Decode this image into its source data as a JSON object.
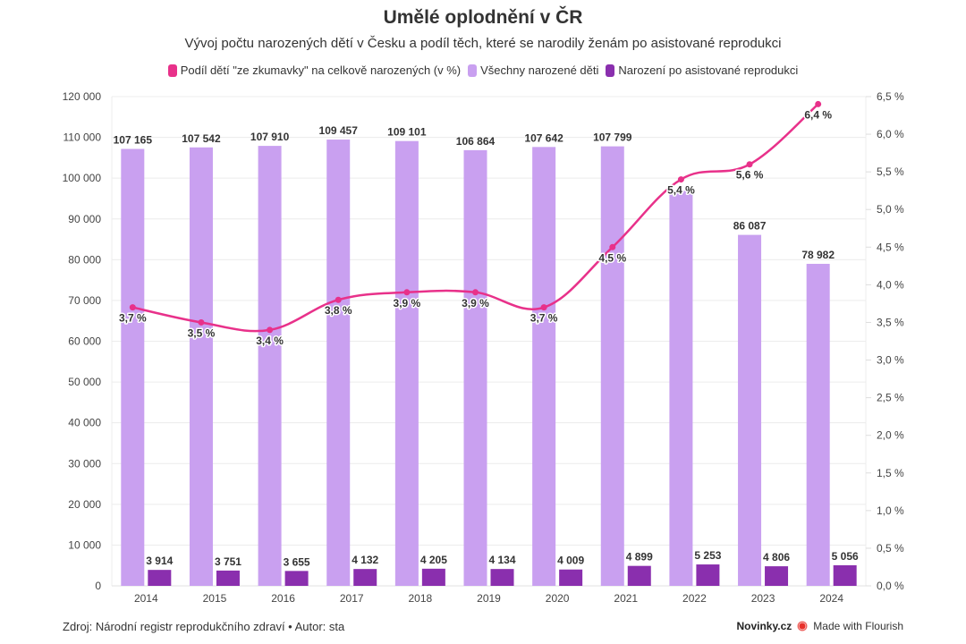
{
  "header": {
    "title": "Umělé oplodnění v ČR",
    "subtitle": "Vývoj počtu narozených dětí v Česku a podíl těch, které se narodily ženám po asistované reprodukci"
  },
  "legend": [
    {
      "label": "Podíl dětí \"ze zkumavky\" na celkově narozených (v %)",
      "color": "#e8318a"
    },
    {
      "label": "Všechny narozené děti",
      "color": "#c9a0f0"
    },
    {
      "label": "Narození po asistované reprodukci",
      "color": "#8a2fae"
    }
  ],
  "footer": {
    "source": "Zdroj: Národní registr reprodukčního zdraví • Autor: sta",
    "brand": "Novinky.cz",
    "made_with": "Made with Flourish"
  },
  "chart_data": {
    "type": "bar",
    "title": "Umělé oplodnění v ČR",
    "subtitle": "Vývoj počtu narozených dětí v Česku a podíl těch, které se narodily ženám po asistované reprodukci",
    "categories": [
      "2014",
      "2015",
      "2016",
      "2017",
      "2018",
      "2019",
      "2020",
      "2021",
      "2022",
      "2023",
      "2024"
    ],
    "series": [
      {
        "name": "Všechny narozené děti",
        "type": "bar",
        "axis": "left",
        "color": "#c9a0f0",
        "values": [
          107165,
          107542,
          107910,
          109457,
          109101,
          106864,
          107642,
          107799,
          96885,
          86087,
          78982
        ],
        "labels": [
          "107 165",
          "107 542",
          "107 910",
          "109 457",
          "109 101",
          "106 864",
          "107 642",
          "107 799",
          "",
          "86 087",
          "78 982"
        ]
      },
      {
        "name": "Narození po asistované reprodukci",
        "type": "bar",
        "axis": "left",
        "color": "#8a2fae",
        "values": [
          3914,
          3751,
          3655,
          4132,
          4205,
          4134,
          4009,
          4899,
          5253,
          4806,
          5056
        ],
        "labels": [
          "3 914",
          "3 751",
          "3 655",
          "4 132",
          "4 205",
          "4 134",
          "4 009",
          "4 899",
          "5 253",
          "4 806",
          "5 056"
        ]
      },
      {
        "name": "Podíl dětí \"ze zkumavky\" na celkově narozených (v %)",
        "type": "line",
        "axis": "right",
        "color": "#e8318a",
        "values": [
          3.7,
          3.5,
          3.4,
          3.8,
          3.9,
          3.9,
          3.7,
          4.5,
          5.4,
          5.6,
          6.4
        ],
        "labels": [
          "3,7 %",
          "3,5 %",
          "3,4 %",
          "3,8 %",
          "3,9 %",
          "3,9 %",
          "3,7 %",
          "4,5 %",
          "5,4 %",
          "5,6 %",
          "6,4 %"
        ]
      }
    ],
    "y_left": {
      "range": [
        0,
        120000
      ],
      "ticks": [
        0,
        10000,
        20000,
        30000,
        40000,
        50000,
        60000,
        70000,
        80000,
        90000,
        100000,
        110000,
        120000
      ],
      "tick_labels": [
        "0",
        "10 000",
        "20 000",
        "30 000",
        "40 000",
        "50 000",
        "60 000",
        "70 000",
        "80 000",
        "90 000",
        "100 000",
        "110 000",
        "120 000"
      ]
    },
    "y_right": {
      "range": [
        0,
        6.5
      ],
      "ticks": [
        0,
        0.5,
        1,
        1.5,
        2,
        2.5,
        3,
        3.5,
        4,
        4.5,
        5,
        5.5,
        6,
        6.5
      ],
      "tick_labels": [
        "0,0 %",
        "0,5 %",
        "1,0 %",
        "1,5 %",
        "2,0 %",
        "2,5 %",
        "3,0 %",
        "3,5 %",
        "4,0 %",
        "4,5 %",
        "5,0 %",
        "5,5 %",
        "6,0 %",
        "6,5 %"
      ]
    },
    "xlabel": "",
    "ylabel": "",
    "grid": true,
    "legend_position": "top-center"
  }
}
